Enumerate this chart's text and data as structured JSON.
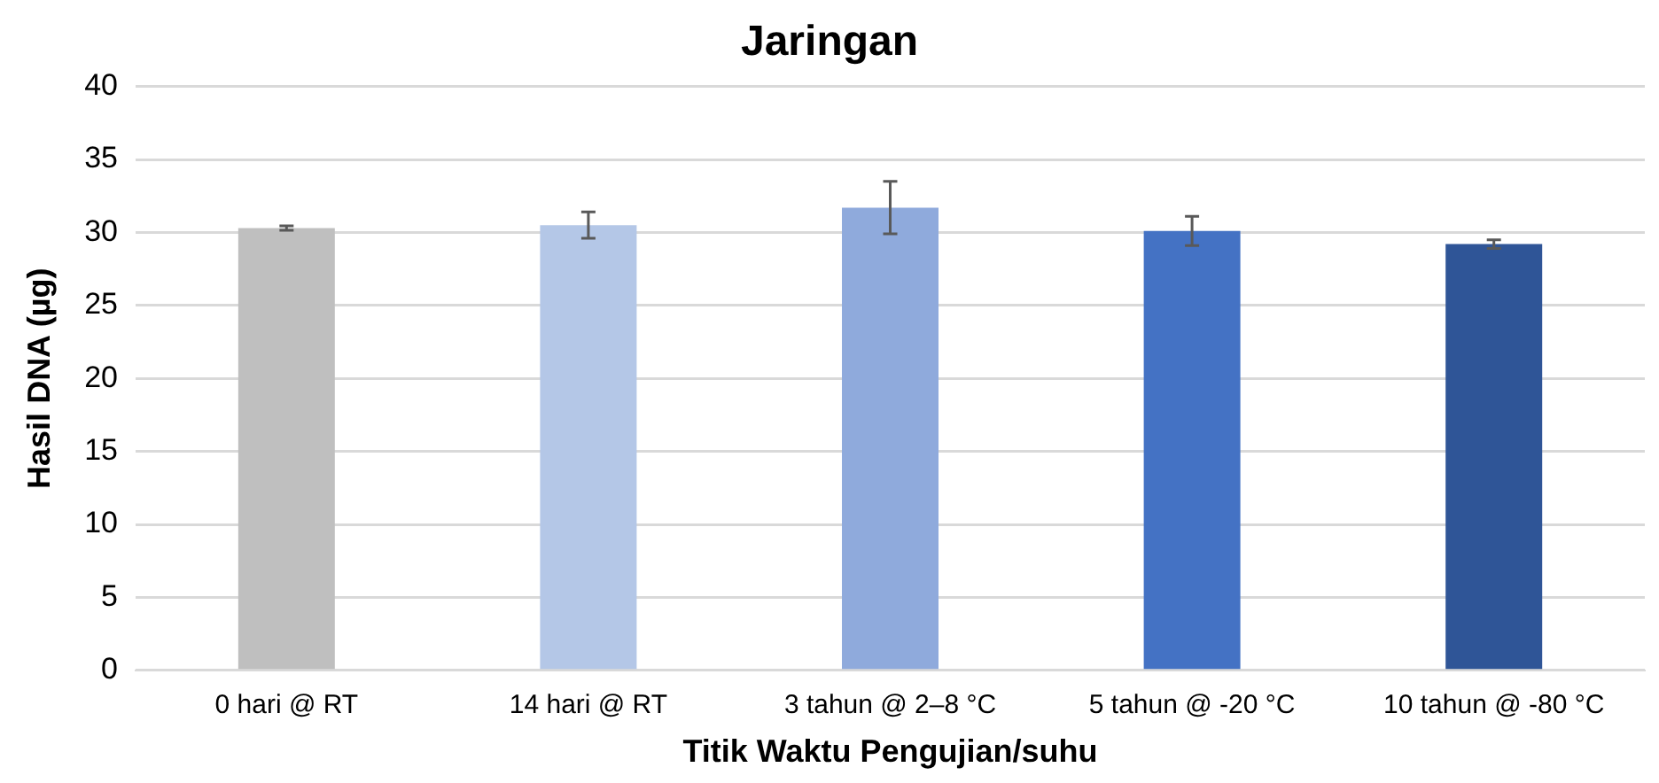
{
  "chart_data": {
    "type": "bar",
    "title": "Jaringan",
    "xlabel": "Titik Waktu Pengujian/suhu",
    "ylabel": "Hasil DNA (µg)",
    "categories": [
      "0 hari @ RT",
      "14 hari @ RT",
      "3 tahun @ 2–8 °C",
      "5 tahun @ -20 °C",
      "10 tahun @ -80 °C"
    ],
    "values": [
      30.3,
      30.5,
      31.7,
      30.1,
      29.2
    ],
    "colors": [
      "#bfbfbf",
      "#b4c7e7",
      "#8faadc",
      "#4472c4",
      "#2f5597"
    ],
    "errors": [
      0.15,
      0.9,
      1.8,
      1.0,
      0.3
    ],
    "ylim": [
      0,
      40
    ],
    "yticks": [
      0,
      5,
      10,
      15,
      20,
      25,
      30,
      35,
      40
    ],
    "grid": "y",
    "legend": false
  }
}
